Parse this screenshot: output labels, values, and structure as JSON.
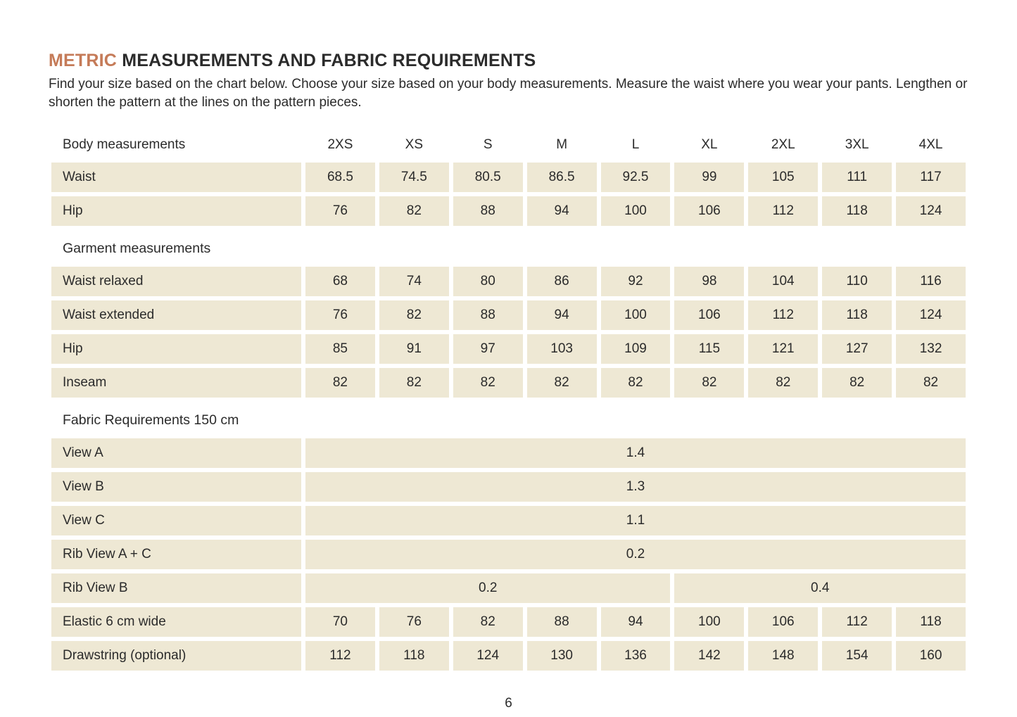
{
  "header": {
    "title_accent": "METRIC",
    "title_rest": "MEASUREMENTS AND FABRIC REQUIREMENTS",
    "intro": "Find your size based on the chart below. Choose your size based on your body measurements. Measure the waist where you wear your pants. Lengthen or shorten the pattern at the lines on the pattern pieces."
  },
  "colors": {
    "accent": "#c57b58",
    "cell_background": "#eee8d4",
    "text": "#2b2b2b"
  },
  "table": {
    "size_labels": [
      "2XS",
      "XS",
      "S",
      "M",
      "L",
      "XL",
      "2XL",
      "3XL",
      "4XL"
    ],
    "body_section_label": "Body measurements",
    "body_rows": [
      {
        "label": "Waist",
        "values": [
          "68.5",
          "74.5",
          "80.5",
          "86.5",
          "92.5",
          "99",
          "105",
          "111",
          "117"
        ]
      },
      {
        "label": "Hip",
        "values": [
          "76",
          "82",
          "88",
          "94",
          "100",
          "106",
          "112",
          "118",
          "124"
        ]
      }
    ],
    "garment_section_label": "Garment measurements",
    "garment_rows": [
      {
        "label": "Waist relaxed",
        "values": [
          "68",
          "74",
          "80",
          "86",
          "92",
          "98",
          "104",
          "110",
          "116"
        ]
      },
      {
        "label": "Waist extended",
        "values": [
          "76",
          "82",
          "88",
          "94",
          "100",
          "106",
          "112",
          "118",
          "124"
        ]
      },
      {
        "label": "Hip",
        "values": [
          "85",
          "91",
          "97",
          "103",
          "109",
          "115",
          "121",
          "127",
          "132"
        ]
      },
      {
        "label": "Inseam",
        "values": [
          "82",
          "82",
          "82",
          "82",
          "82",
          "82",
          "82",
          "82",
          "82"
        ]
      }
    ],
    "fabric_section_label": "Fabric Requirements 150 cm",
    "fabric_full_rows": [
      {
        "label": "View A",
        "value": "1.4"
      },
      {
        "label": "View B",
        "value": "1.3"
      },
      {
        "label": "View C",
        "value": "1.1"
      },
      {
        "label": "Rib View A + C",
        "value": "0.2"
      }
    ],
    "fabric_split_row": {
      "label": "Rib View B",
      "left_value": "0.2",
      "right_value": "0.4"
    },
    "fabric_value_rows": [
      {
        "label": "Elastic 6 cm wide",
        "values": [
          "70",
          "76",
          "82",
          "88",
          "94",
          "100",
          "106",
          "112",
          "118"
        ]
      },
      {
        "label": "Drawstring (optional)",
        "values": [
          "112",
          "118",
          "124",
          "130",
          "136",
          "142",
          "148",
          "154",
          "160"
        ]
      }
    ]
  },
  "footer": {
    "page_number": "6"
  }
}
